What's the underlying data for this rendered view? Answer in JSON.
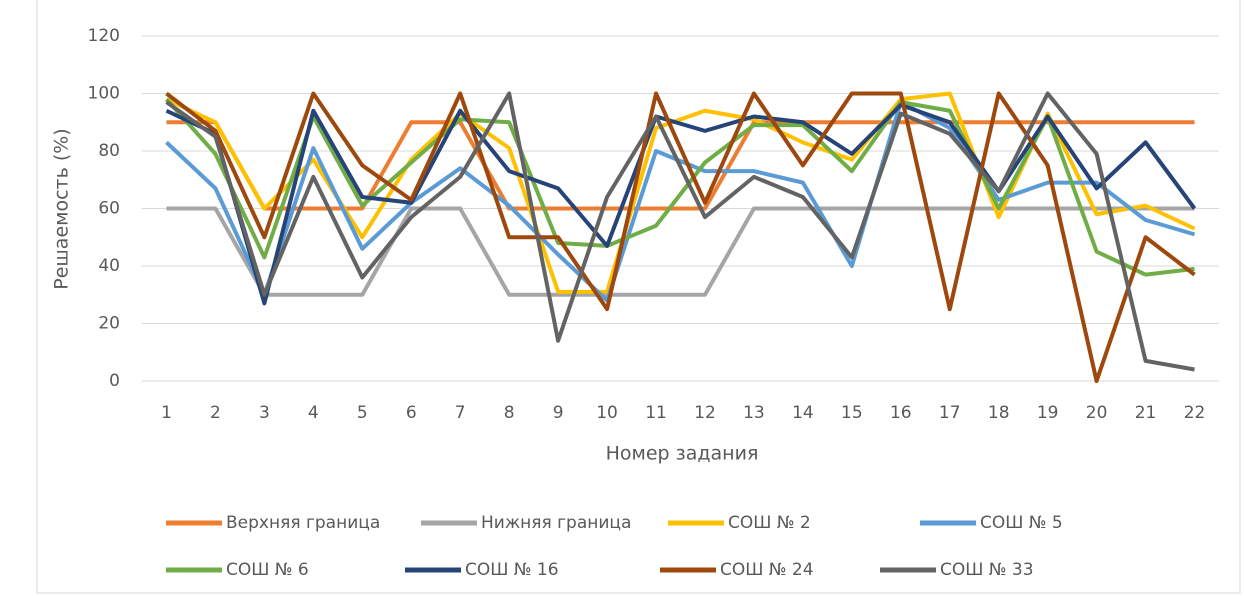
{
  "chart_data": {
    "type": "line",
    "xlabel": "Номер задания",
    "ylabel": "Решаемость (%)",
    "categories": [
      "1",
      "2",
      "3",
      "4",
      "5",
      "6",
      "7",
      "8",
      "9",
      "10",
      "11",
      "12",
      "13",
      "14",
      "15",
      "16",
      "17",
      "18",
      "19",
      "20",
      "21",
      "22"
    ],
    "ylim": [
      0,
      120
    ],
    "yticks": [
      0,
      20,
      40,
      60,
      80,
      100,
      120
    ],
    "grid": true,
    "legend": "bottom",
    "series": [
      {
        "name": "Верхняя граница",
        "color": "#ed7d31",
        "values": [
          90,
          90,
          60,
          60,
          60,
          90,
          90,
          60,
          60,
          60,
          60,
          60,
          90,
          90,
          90,
          90,
          90,
          90,
          90,
          90,
          90,
          90
        ]
      },
      {
        "name": "Нижняя граница",
        "color": "#a5a5a5",
        "values": [
          60,
          60,
          30,
          30,
          30,
          60,
          60,
          30,
          30,
          30,
          30,
          30,
          60,
          60,
          60,
          60,
          60,
          60,
          60,
          60,
          60,
          60
        ]
      },
      {
        "name": "СОШ № 2",
        "color": "#ffc000",
        "values": [
          98,
          90,
          60,
          77,
          50,
          77,
          93,
          81,
          31,
          31,
          88,
          94,
          91,
          83,
          77,
          98,
          100,
          57,
          93,
          58,
          61,
          53
        ]
      },
      {
        "name": "СОШ № 5",
        "color": "#5b9bd5",
        "values": [
          83,
          67,
          30,
          81,
          46,
          62,
          74,
          61,
          44,
          28,
          80,
          73,
          73,
          69,
          40,
          97,
          88,
          63,
          69,
          69,
          56,
          51
        ]
      },
      {
        "name": "СОШ № 6",
        "color": "#70ad47",
        "values": [
          98,
          79,
          43,
          92,
          61,
          76,
          91,
          90,
          48,
          47,
          54,
          76,
          89,
          89,
          73,
          97,
          94,
          60,
          92,
          45,
          37,
          39
        ]
      },
      {
        "name": "СОШ № 16",
        "color": "#264478",
        "values": [
          94,
          86,
          27,
          94,
          64,
          62,
          94,
          73,
          67,
          47,
          92,
          87,
          92,
          90,
          79,
          96,
          90,
          66,
          92,
          67,
          83,
          60
        ]
      },
      {
        "name": "СОШ № 24",
        "color": "#9e480e",
        "values": [
          100,
          87,
          50,
          100,
          75,
          63,
          100,
          50,
          50,
          25,
          100,
          62,
          100,
          75,
          100,
          100,
          25,
          100,
          75,
          0,
          50,
          37
        ]
      },
      {
        "name": "СОШ № 33",
        "color": "#636363",
        "values": [
          97,
          85,
          30,
          71,
          36,
          57,
          71,
          100,
          14,
          64,
          92,
          57,
          71,
          64,
          43,
          93,
          86,
          66,
          100,
          79,
          7,
          4
        ]
      }
    ]
  }
}
